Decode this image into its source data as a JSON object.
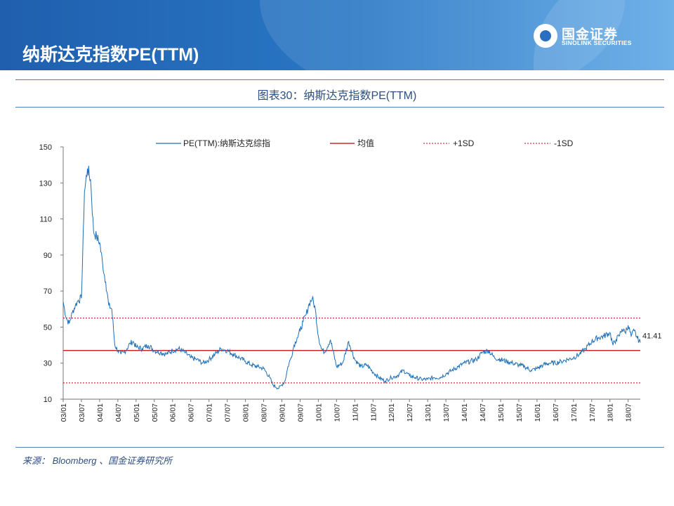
{
  "header": {
    "title": "纳斯达克指数PE(TTM)"
  },
  "logo": {
    "name_cn": "国金证券",
    "name_en": "SINOLINK SECURITIES"
  },
  "figure": {
    "caption": "图表30：纳斯达克指数PE(TTM)"
  },
  "source": {
    "text": "来源： Bloomberg 、国金证券研究所"
  },
  "colors": {
    "header_blue": "#2a79c6",
    "series_line": "#1f6fb5",
    "mean_line": "#c00000",
    "sd_line": "#c00000",
    "caption_text": "#2d4f82"
  },
  "chart_data": {
    "type": "line",
    "ylim": [
      10,
      150
    ],
    "yticks": [
      10,
      30,
      50,
      70,
      90,
      110,
      130,
      150
    ],
    "xticks": [
      "03/01",
      "03/07",
      "04/01",
      "04/07",
      "05/01",
      "05/07",
      "06/01",
      "06/07",
      "07/01",
      "07/07",
      "08/01",
      "08/07",
      "09/01",
      "09/07",
      "10/01",
      "10/07",
      "11/01",
      "11/07",
      "12/01",
      "12/07",
      "13/01",
      "13/07",
      "14/01",
      "14/07",
      "15/01",
      "15/07",
      "16/01",
      "16/07",
      "17/01",
      "17/07",
      "18/01",
      "18/07"
    ],
    "legend": {
      "placement": "top",
      "entries": [
        {
          "label": "PE(TTM):纳斯达克综指",
          "style": "solid-blue"
        },
        {
          "label": "均值",
          "style": "solid-red"
        },
        {
          "label": "+1SD",
          "style": "dashed-red"
        },
        {
          "label": "-1SD",
          "style": "dashed-red"
        }
      ]
    },
    "mean": 37,
    "plus_1sd": 55,
    "minus_1sd": 19,
    "last_value_label": "41.41",
    "series": [
      {
        "name": "PE(TTM):纳斯达克综指",
        "x": [
          "2003-01",
          "2003-02",
          "2003-03",
          "2003-04",
          "2003-05",
          "2003-06",
          "2003-07",
          "2003-08",
          "2003-09",
          "2003-10",
          "2003-11",
          "2003-12",
          "2004-01",
          "2004-02",
          "2004-03",
          "2004-04",
          "2004-05",
          "2004-06",
          "2004-07",
          "2004-08",
          "2004-09",
          "2004-10",
          "2004-11",
          "2004-12",
          "2005-01",
          "2005-03",
          "2005-05",
          "2005-07",
          "2005-09",
          "2005-11",
          "2006-01",
          "2006-03",
          "2006-05",
          "2006-07",
          "2006-09",
          "2006-11",
          "2007-01",
          "2007-03",
          "2007-05",
          "2007-07",
          "2007-09",
          "2007-11",
          "2008-01",
          "2008-03",
          "2008-05",
          "2008-07",
          "2008-09",
          "2008-10",
          "2008-12",
          "2009-01",
          "2009-02",
          "2009-03",
          "2009-04",
          "2009-05",
          "2009-06",
          "2009-07",
          "2009-08",
          "2009-09",
          "2009-10",
          "2009-11",
          "2009-12",
          "2010-01",
          "2010-02",
          "2010-03",
          "2010-05",
          "2010-07",
          "2010-09",
          "2010-11",
          "2011-01",
          "2011-03",
          "2011-05",
          "2011-07",
          "2011-09",
          "2011-11",
          "2012-01",
          "2012-03",
          "2012-05",
          "2012-07",
          "2012-09",
          "2012-11",
          "2013-01",
          "2013-03",
          "2013-05",
          "2013-07",
          "2013-09",
          "2013-11",
          "2014-01",
          "2014-03",
          "2014-05",
          "2014-07",
          "2014-09",
          "2014-11",
          "2015-01",
          "2015-03",
          "2015-05",
          "2015-07",
          "2015-09",
          "2015-11",
          "2016-01",
          "2016-03",
          "2016-05",
          "2016-07",
          "2016-09",
          "2016-11",
          "2017-01",
          "2017-03",
          "2017-05",
          "2017-07",
          "2017-09",
          "2017-11",
          "2018-01",
          "2018-02",
          "2018-03",
          "2018-04",
          "2018-05",
          "2018-06",
          "2018-07",
          "2018-08",
          "2018-09",
          "2018-10",
          "2018-11"
        ],
        "values": [
          64,
          55,
          52,
          58,
          62,
          65,
          66,
          125,
          138,
          132,
          103,
          100,
          97,
          85,
          75,
          62,
          60,
          40,
          37,
          35,
          36,
          38,
          41,
          42,
          39,
          38,
          40,
          37,
          36,
          35,
          37,
          38,
          36,
          33,
          32,
          30,
          32,
          35,
          38,
          37,
          35,
          33,
          31,
          29,
          28,
          27,
          22,
          18,
          16,
          18,
          20,
          28,
          33,
          40,
          44,
          48,
          53,
          57,
          63,
          66,
          60,
          45,
          38,
          36,
          43,
          28,
          30,
          42,
          32,
          28,
          29,
          25,
          22,
          20,
          22,
          23,
          26,
          23,
          22,
          21,
          21,
          22,
          22,
          24,
          26,
          28,
          30,
          31,
          32,
          36,
          37,
          33,
          32,
          31,
          30,
          29,
          28,
          26,
          27,
          29,
          30,
          30,
          31,
          32,
          33,
          35,
          38,
          42,
          44,
          45,
          47,
          40,
          43,
          45,
          49,
          47,
          51,
          45,
          48,
          44,
          41.41
        ]
      }
    ]
  }
}
